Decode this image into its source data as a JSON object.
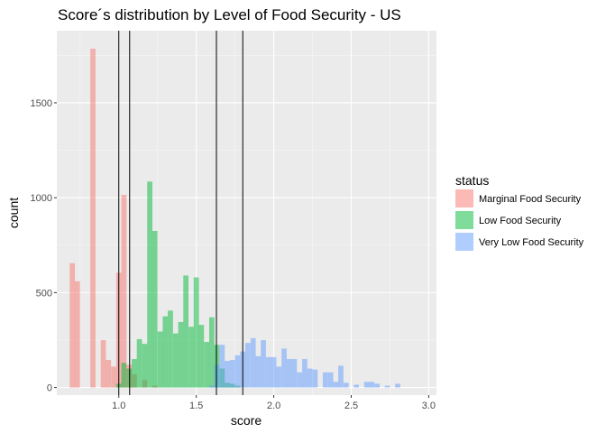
{
  "chart_data": {
    "type": "bar",
    "title": "Score´s distribution by Level of Food Security - US",
    "xlabel": "score",
    "ylabel": "count",
    "xlim": [
      0.6,
      3.05
    ],
    "ylim": [
      -40,
      1880
    ],
    "x_ticks": [
      1.0,
      1.5,
      2.0,
      2.5,
      3.0
    ],
    "x_tick_labels": [
      "1.0",
      "1.5",
      "2.0",
      "2.5",
      "3.0"
    ],
    "y_ticks": [
      0,
      500,
      1000,
      1500
    ],
    "y_tick_labels": [
      "0",
      "500",
      "1000",
      "1500"
    ],
    "grid": true,
    "legend": {
      "title": "status",
      "position": "right"
    },
    "bin_width": 0.05,
    "vertical_lines": [
      1.0,
      1.07,
      1.63,
      1.8
    ],
    "series": [
      {
        "name": "Marginal Food Security",
        "color": "#F8766D",
        "bins": [
          {
            "x": 0.7,
            "count": 655
          },
          {
            "x": 0.733,
            "count": 560
          },
          {
            "x": 0.833,
            "count": 1785
          },
          {
            "x": 0.9,
            "count": 250
          },
          {
            "x": 0.933,
            "count": 145
          },
          {
            "x": 0.967,
            "count": 110
          },
          {
            "x": 1.0,
            "count": 605
          },
          {
            "x": 1.033,
            "count": 1015
          },
          {
            "x": 1.067,
            "count": 120
          },
          {
            "x": 1.1,
            "count": 70
          },
          {
            "x": 1.167,
            "count": 40
          },
          {
            "x": 1.233,
            "count": 10
          }
        ]
      },
      {
        "name": "Low Food Security",
        "color": "#00BA38",
        "bins": [
          {
            "x": 1.0,
            "count": 20
          },
          {
            "x": 1.033,
            "count": 130
          },
          {
            "x": 1.067,
            "count": 100
          },
          {
            "x": 1.1,
            "count": 150
          },
          {
            "x": 1.133,
            "count": 255
          },
          {
            "x": 1.167,
            "count": 230
          },
          {
            "x": 1.2,
            "count": 1085
          },
          {
            "x": 1.233,
            "count": 825
          },
          {
            "x": 1.267,
            "count": 295
          },
          {
            "x": 1.3,
            "count": 375
          },
          {
            "x": 1.333,
            "count": 405
          },
          {
            "x": 1.367,
            "count": 285
          },
          {
            "x": 1.4,
            "count": 345
          },
          {
            "x": 1.433,
            "count": 590
          },
          {
            "x": 1.467,
            "count": 320
          },
          {
            "x": 1.5,
            "count": 580
          },
          {
            "x": 1.533,
            "count": 330
          },
          {
            "x": 1.567,
            "count": 240
          },
          {
            "x": 1.6,
            "count": 370
          },
          {
            "x": 1.633,
            "count": 225
          },
          {
            "x": 1.667,
            "count": 100
          },
          {
            "x": 1.7,
            "count": 25
          },
          {
            "x": 1.733,
            "count": 20
          },
          {
            "x": 1.767,
            "count": 10
          }
        ]
      },
      {
        "name": "Very Low Food Security",
        "color": "#619CFF",
        "bins": [
          {
            "x": 1.6,
            "count": 10
          },
          {
            "x": 1.633,
            "count": 120
          },
          {
            "x": 1.667,
            "count": 225
          },
          {
            "x": 1.7,
            "count": 140
          },
          {
            "x": 1.733,
            "count": 145
          },
          {
            "x": 1.767,
            "count": 170
          },
          {
            "x": 1.8,
            "count": 190
          },
          {
            "x": 1.833,
            "count": 235
          },
          {
            "x": 1.867,
            "count": 260
          },
          {
            "x": 1.9,
            "count": 165
          },
          {
            "x": 1.933,
            "count": 250
          },
          {
            "x": 1.967,
            "count": 160
          },
          {
            "x": 2.0,
            "count": 160
          },
          {
            "x": 2.033,
            "count": 110
          },
          {
            "x": 2.067,
            "count": 205
          },
          {
            "x": 2.1,
            "count": 150
          },
          {
            "x": 2.133,
            "count": 150
          },
          {
            "x": 2.167,
            "count": 80
          },
          {
            "x": 2.2,
            "count": 150
          },
          {
            "x": 2.233,
            "count": 100
          },
          {
            "x": 2.267,
            "count": 95
          },
          {
            "x": 2.333,
            "count": 80
          },
          {
            "x": 2.367,
            "count": 80
          },
          {
            "x": 2.4,
            "count": 30
          },
          {
            "x": 2.433,
            "count": 115
          },
          {
            "x": 2.467,
            "count": 25
          },
          {
            "x": 2.533,
            "count": 15
          },
          {
            "x": 2.6,
            "count": 30
          },
          {
            "x": 2.633,
            "count": 30
          },
          {
            "x": 2.667,
            "count": 20
          },
          {
            "x": 2.733,
            "count": 10
          },
          {
            "x": 2.8,
            "count": 20
          }
        ]
      }
    ]
  }
}
